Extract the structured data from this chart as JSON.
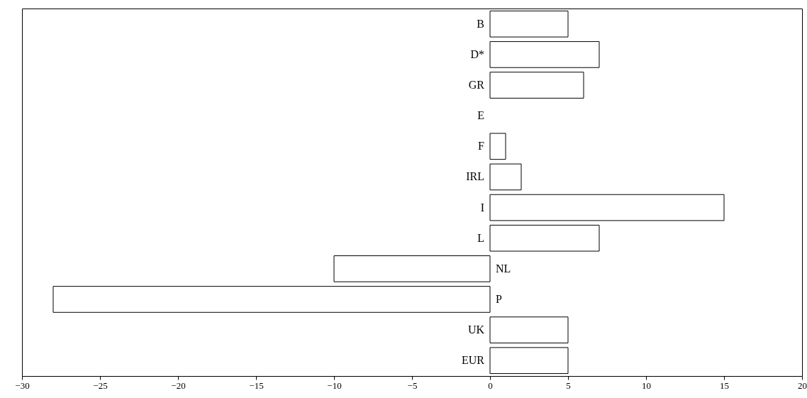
{
  "chart_data": {
    "type": "bar",
    "orientation": "horizontal",
    "categories": [
      "B",
      "D*",
      "GR",
      "E",
      "F",
      "IRL",
      "I",
      "L",
      "NL",
      "P",
      "UK",
      "EUR"
    ],
    "values": [
      5,
      7,
      6,
      0,
      1,
      2,
      15,
      7,
      -10,
      -28,
      5,
      5
    ],
    "color": "#ffffff",
    "xlim": [
      -30,
      20
    ],
    "xticks": [
      -30,
      -25,
      -20,
      -15,
      -10,
      -5,
      0,
      5,
      10,
      15,
      20
    ],
    "grid": false
  }
}
